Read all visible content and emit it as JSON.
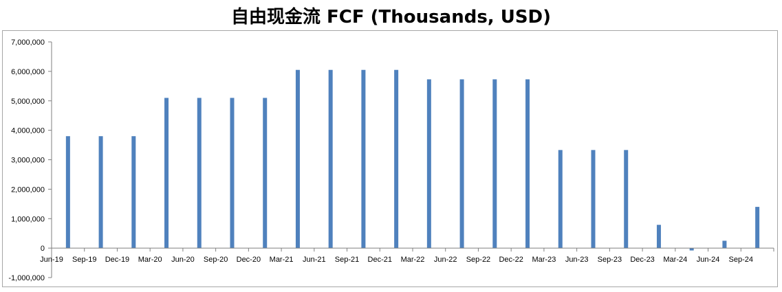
{
  "chart_data": {
    "type": "bar",
    "title": "自由现金流 FCF (Thousands, USD)",
    "xlabel": "",
    "ylabel": "",
    "ylim": [
      -1000000,
      7000000
    ],
    "yticks": [
      -1000000,
      0,
      1000000,
      2000000,
      3000000,
      4000000,
      5000000,
      6000000,
      7000000
    ],
    "ytick_labels": [
      "-1,000,000",
      "0",
      "1,000,000",
      "2,000,000",
      "3,000,000",
      "4,000,000",
      "5,000,000",
      "6,000,000",
      "7,000,000"
    ],
    "categories": [
      "Jun-19",
      "Sep-19",
      "Dec-19",
      "Mar-20",
      "Jun-20",
      "Sep-20",
      "Dec-20",
      "Mar-21",
      "Jun-21",
      "Sep-21",
      "Dec-21",
      "Mar-22",
      "Jun-22",
      "Sep-22",
      "Dec-22",
      "Mar-23",
      "Jun-23",
      "Sep-23",
      "Dec-23",
      "Mar-24",
      "Jun-24",
      "Sep-24"
    ],
    "values": [
      3800000,
      3800000,
      3800000,
      5100000,
      5100000,
      5100000,
      5100000,
      6050000,
      6050000,
      6050000,
      6050000,
      5730000,
      5730000,
      5730000,
      5730000,
      3330000,
      3330000,
      3330000,
      790000,
      -80000,
      250000,
      1400000
    ],
    "grid": false,
    "legend": "none",
    "colors": {
      "bar": "#4f81bd",
      "axis": "#7f7f7f",
      "frame": "#a6a6a6"
    }
  }
}
